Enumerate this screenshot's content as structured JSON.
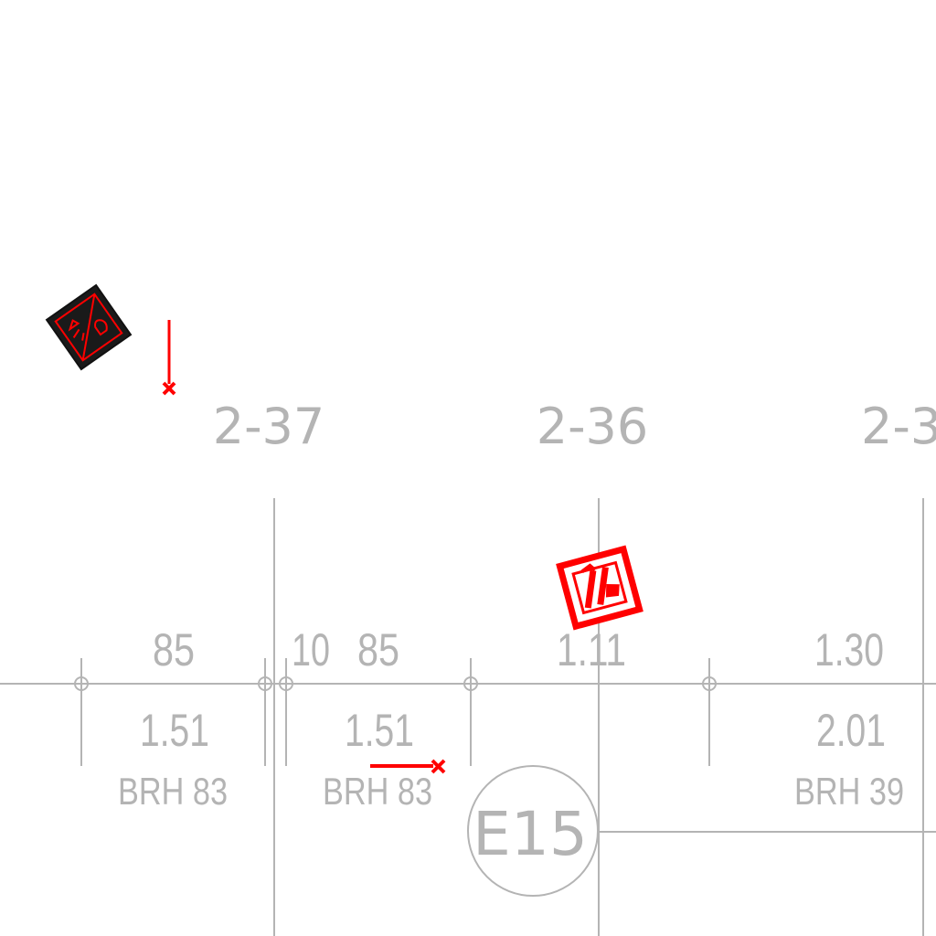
{
  "grid_labels": {
    "a": "2-37",
    "b": "2-36",
    "c": "2-3"
  },
  "upper_dimensions": {
    "d1": "85",
    "d2": "10",
    "d3": "85",
    "d4": "1.11",
    "d5": "1.30"
  },
  "lower_dimensions": {
    "d1": "1.51",
    "d2": "1.51",
    "d3": "2.01"
  },
  "brh_labels": {
    "b1": "BRH 83",
    "b2": "BRH 83",
    "b3": "BRH 39"
  },
  "bubble": {
    "label": "E15"
  },
  "colors": {
    "grid": "#b4b4b4",
    "markup": "#ff0000",
    "symbol_fill": "#1a1a1a"
  },
  "icons": [
    "fire-equipment-sign-icon",
    "fire-extinguisher-sign-icon",
    "leader-endpoint-x-icon"
  ]
}
